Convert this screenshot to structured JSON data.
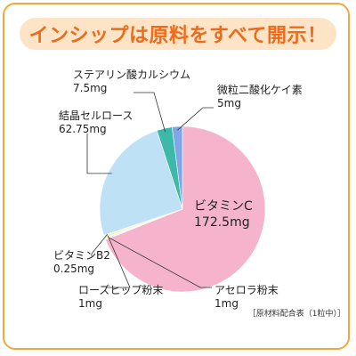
{
  "headline": "インシップは原料をすべて開示！",
  "footnote": "［原材料配合表（1粒中）］",
  "chart_data": {
    "type": "pie",
    "title": "インシップは原料をすべて開示！",
    "unit": "mg",
    "slices": [
      {
        "name": "ビタミンC",
        "value": 172.5,
        "value_label": "172.5mg",
        "color": "#f5b4cc"
      },
      {
        "name": "アセロラ粉末",
        "value": 1,
        "value_label": "1mg",
        "color": "#f3f3f3"
      },
      {
        "name": "ローズヒップ粉末",
        "value": 1,
        "value_label": "1mg",
        "color": "#f4f2b8"
      },
      {
        "name": "ビタミンB2",
        "value": 0.25,
        "value_label": "0.25mg",
        "color": "#cfe9b0"
      },
      {
        "name": "結晶セルロース",
        "value": 62.75,
        "value_label": "62.75mg",
        "color": "#bfe1f6"
      },
      {
        "name": "ステアリン酸カルシウム",
        "value": 7.5,
        "value_label": "7.5mg",
        "color": "#3cb9a9"
      },
      {
        "name": "微粒二酸化ケイ素",
        "value": 5,
        "value_label": "5mg",
        "color": "#7fa6e6"
      }
    ]
  }
}
